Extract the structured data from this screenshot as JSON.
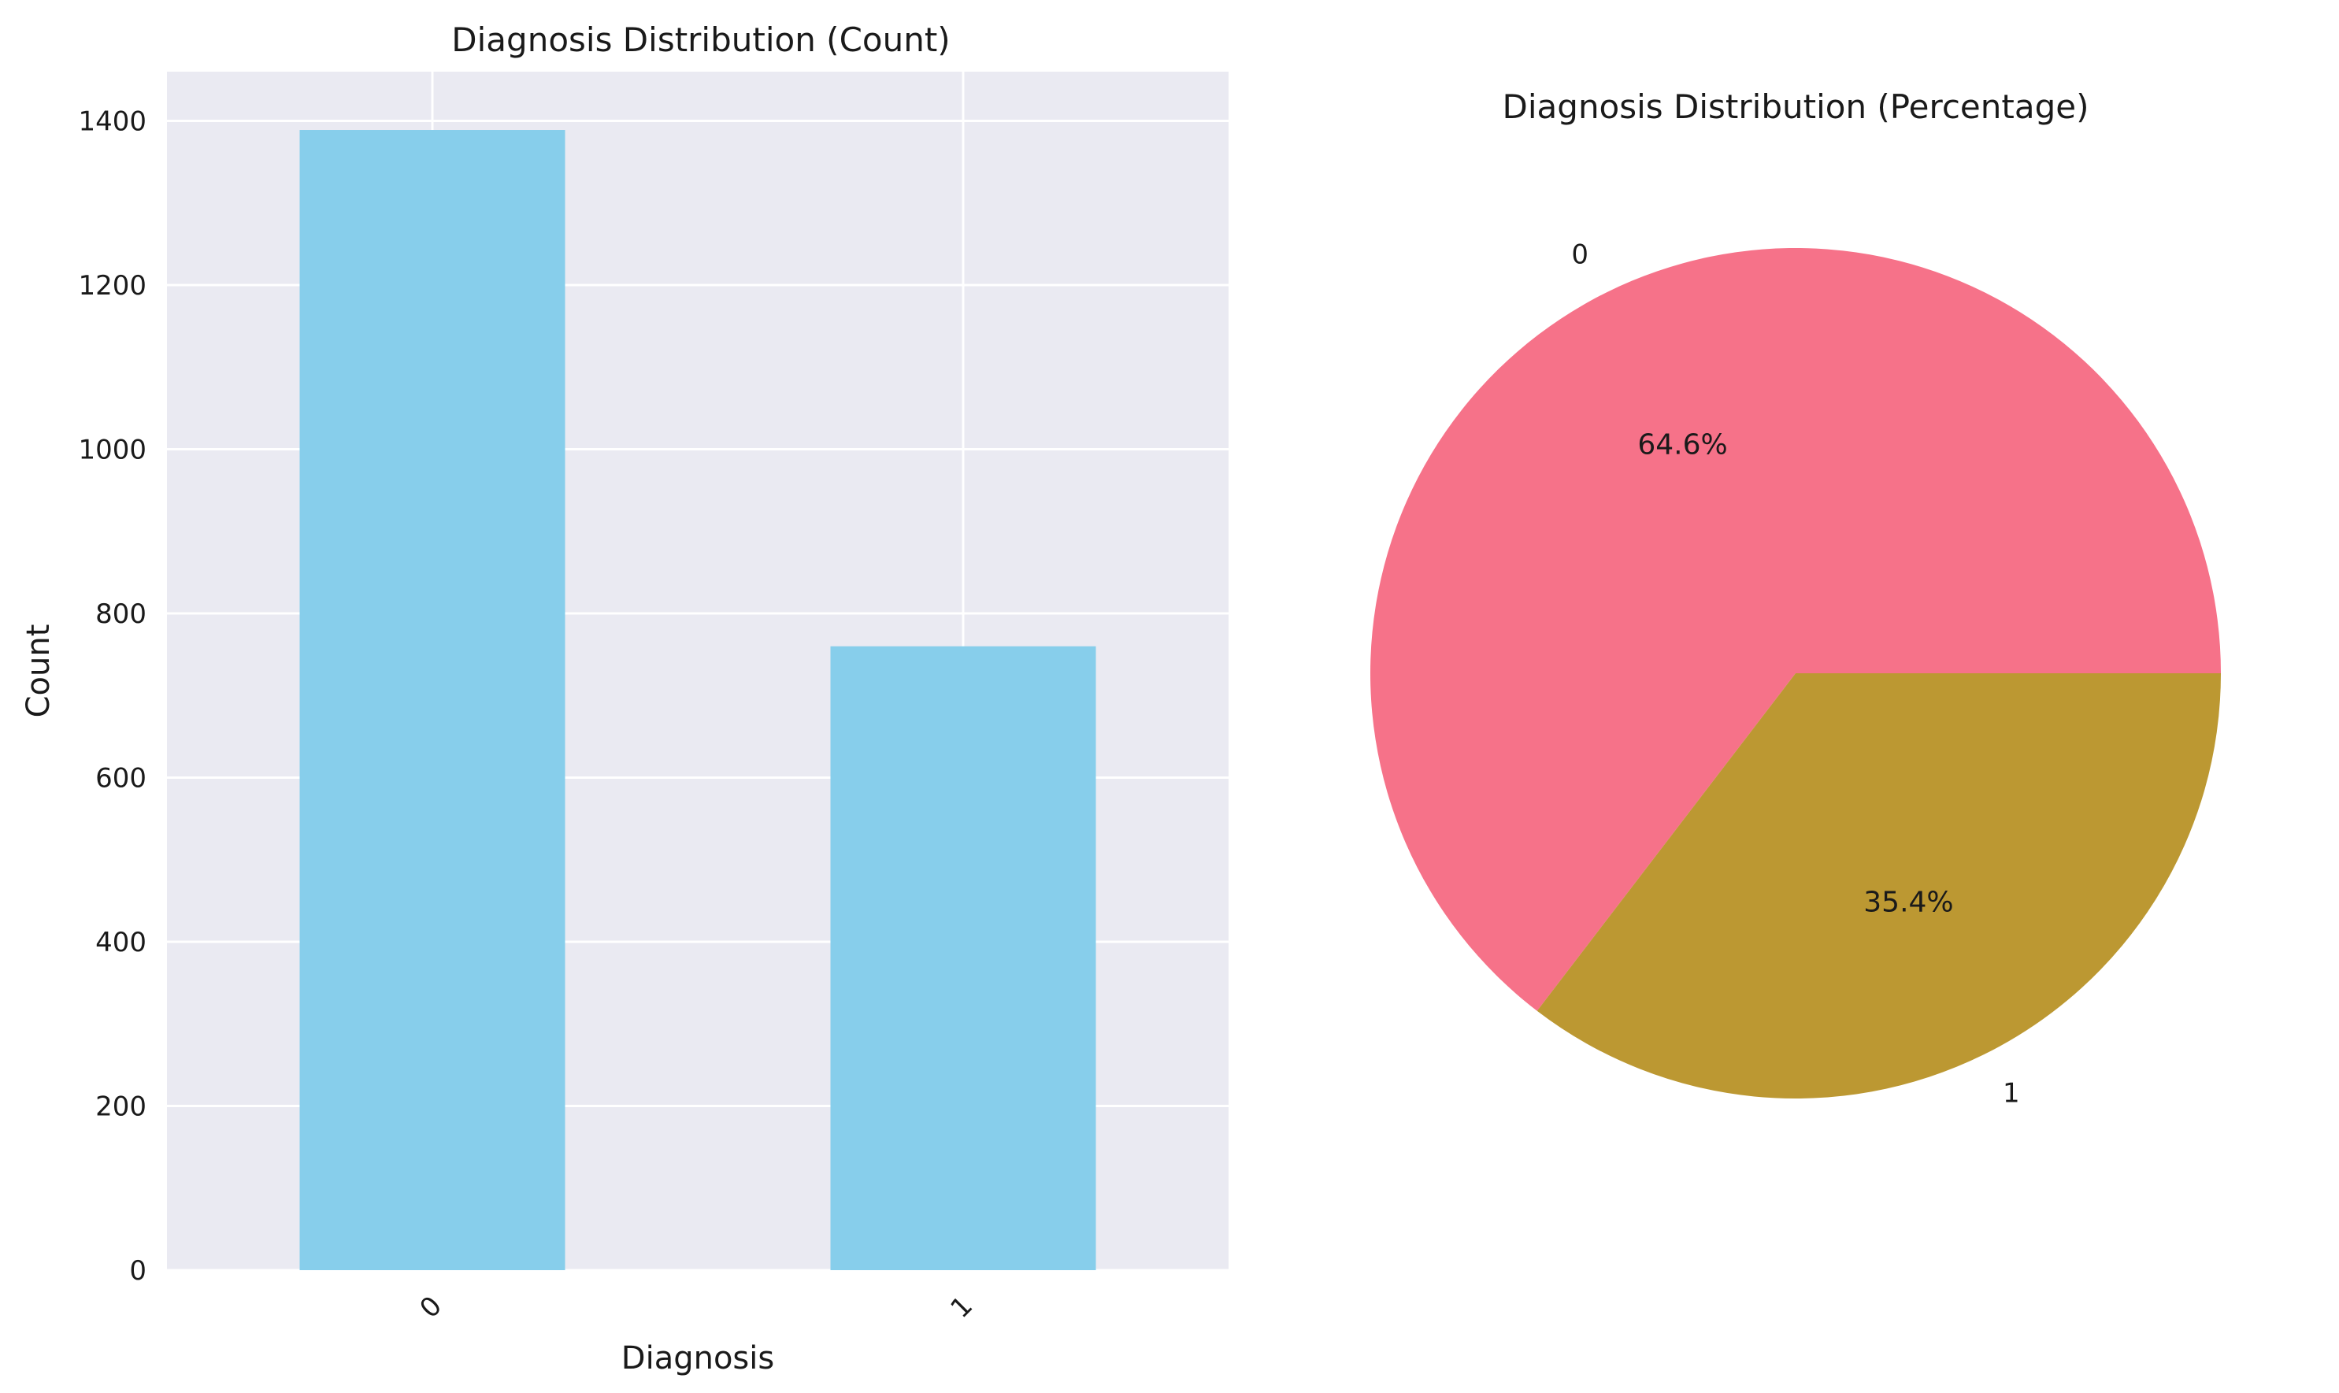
{
  "chart_data": [
    {
      "type": "bar",
      "title": "Diagnosis Distribution (Count)",
      "xlabel": "Diagnosis",
      "ylabel": "Count",
      "categories": [
        "0",
        "1"
      ],
      "values": [
        1389,
        760
      ],
      "ylim": [
        0,
        1460
      ],
      "yticks": [
        "0",
        "200",
        "400",
        "600",
        "800",
        "1000",
        "1200",
        "1400"
      ],
      "grid": true,
      "colors": {
        "bar": "#87ceeb",
        "background": "#eaeaf2",
        "grid": "#ffffff"
      }
    },
    {
      "type": "pie",
      "title": "Diagnosis Distribution (Percentage)",
      "labels": [
        "0",
        "1"
      ],
      "values": [
        64.6,
        35.4
      ],
      "pct_labels": [
        "64.6%",
        "35.4%"
      ],
      "colors": [
        "#f67289",
        "#bc9832"
      ]
    }
  ]
}
